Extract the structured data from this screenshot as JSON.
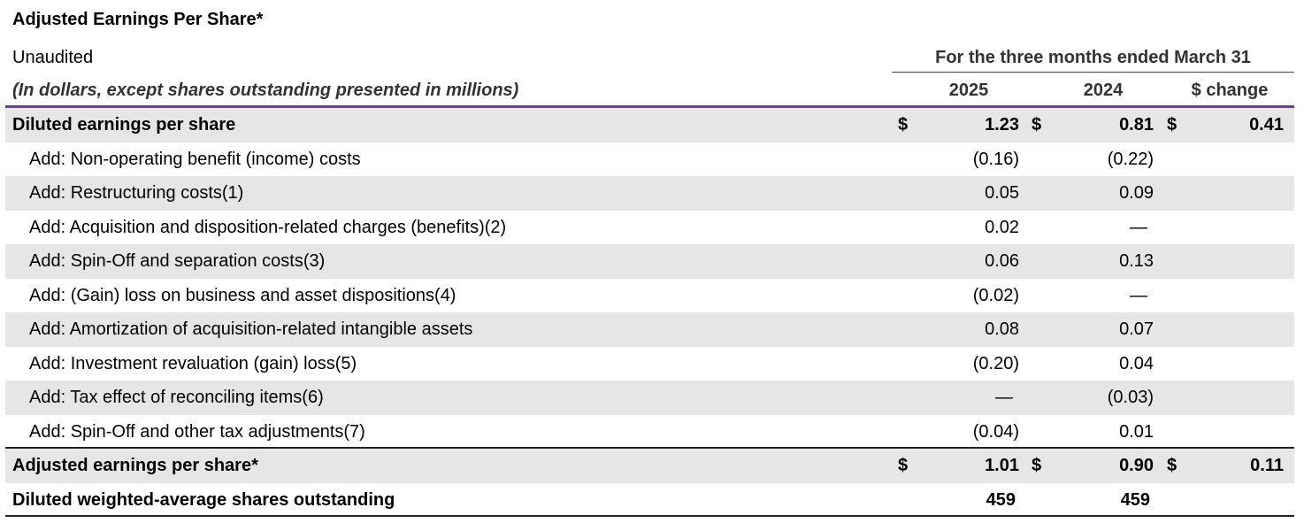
{
  "title": "Adjusted Earnings Per Share*",
  "subtitle": "Unaudited",
  "note": "(In dollars, except shares outstanding presented in millions)",
  "period_header": "For the three months ended March 31",
  "columns": [
    "2025",
    "2024",
    "$ change"
  ],
  "currency_symbol": "$",
  "rows": [
    {
      "label": "Diluted earnings per share",
      "v2025": "1.23",
      "v2024": "0.81",
      "change": "0.41"
    },
    {
      "label": "Add: Non-operating benefit (income) costs",
      "v2025": "(0.16)",
      "v2024": "(0.22)",
      "change": ""
    },
    {
      "label": "Add: Restructuring costs(1)",
      "v2025": "0.05",
      "v2024": "0.09",
      "change": ""
    },
    {
      "label": "Add: Acquisition and disposition-related charges (benefits)(2)",
      "v2025": "0.02",
      "v2024": "—",
      "change": ""
    },
    {
      "label": "Add: Spin-Off and separation costs(3)",
      "v2025": "0.06",
      "v2024": "0.13",
      "change": ""
    },
    {
      "label": "Add: (Gain) loss on business and asset dispositions(4)",
      "v2025": "(0.02)",
      "v2024": "—",
      "change": ""
    },
    {
      "label": "Add: Amortization of acquisition-related intangible assets",
      "v2025": "0.08",
      "v2024": "0.07",
      "change": ""
    },
    {
      "label": "Add: Investment revaluation (gain) loss(5)",
      "v2025": "(0.20)",
      "v2024": "0.04",
      "change": ""
    },
    {
      "label": "Add: Tax effect of reconciling items(6)",
      "v2025": "—",
      "v2024": "(0.03)",
      "change": ""
    },
    {
      "label": "Add: Spin-Off and other tax adjustments(7)",
      "v2025": "(0.04)",
      "v2024": "0.01",
      "change": ""
    },
    {
      "label": "Adjusted earnings per share*",
      "v2025": "1.01",
      "v2024": "0.90",
      "change": "0.11"
    },
    {
      "label": "Diluted weighted-average shares outstanding",
      "v2025": "459",
      "v2024": "459",
      "change": ""
    }
  ]
}
